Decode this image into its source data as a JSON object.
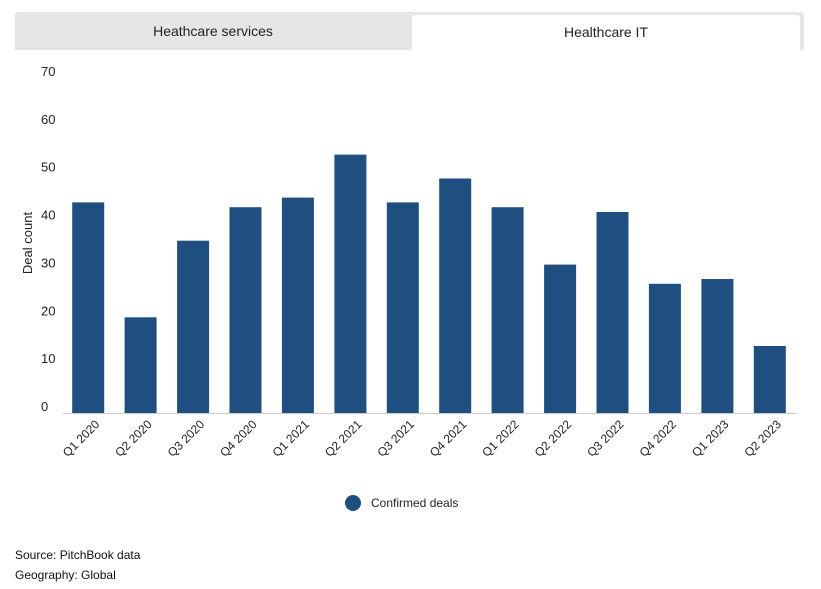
{
  "tabs": [
    {
      "label": "Heathcare services",
      "active": false
    },
    {
      "label": "Healthcare IT",
      "active": true
    }
  ],
  "chart_data": {
    "type": "bar",
    "categories": [
      "Q1 2020",
      "Q2 2020",
      "Q3 2020",
      "Q4 2020",
      "Q1 2021",
      "Q2 2021",
      "Q3 2021",
      "Q4 2021",
      "Q1 2022",
      "Q2 2022",
      "Q3 2022",
      "Q4 2022",
      "Q1 2023",
      "Q2 2023"
    ],
    "series": [
      {
        "name": "Confirmed deals",
        "values": [
          44,
          20,
          36,
          43,
          45,
          54,
          44,
          49,
          43,
          31,
          42,
          27,
          28,
          14
        ],
        "color": "#1f4e80"
      }
    ],
    "title": "",
    "xlabel": "",
    "ylabel": "Deal count",
    "ylim": [
      0,
      70
    ],
    "yticks": [
      0,
      10,
      20,
      30,
      40,
      50,
      60,
      70
    ],
    "grid": false,
    "legend_position": "bottom-center"
  },
  "footer": {
    "source": "Source: PitchBook data",
    "geography": "Geography: Global"
  }
}
